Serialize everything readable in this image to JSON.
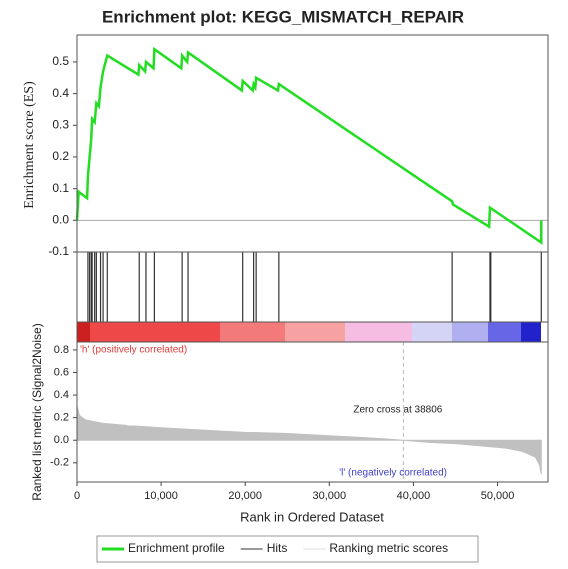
{
  "chart_data": [
    {
      "type": "line",
      "title": "Enrichment plot: KEGG_MISMATCH_REPAIR",
      "ylabel": "Enrichment score (ES)",
      "x": [
        0,
        200,
        1200,
        1300,
        1500,
        1700,
        1800,
        2100,
        2300,
        2600,
        2800,
        3100,
        3600,
        7300,
        7400,
        8100,
        8200,
        9100,
        9200,
        12400,
        12500,
        13100,
        13200,
        19600,
        19700,
        20900,
        21000,
        21200,
        21300,
        23900,
        24000,
        44600,
        44700,
        49000,
        49100,
        55200,
        55200
      ],
      "series": [
        {
          "name": "Enrichment profile",
          "color": "#22dd22",
          "values": [
            0.0,
            0.09,
            0.07,
            0.14,
            0.2,
            0.26,
            0.32,
            0.31,
            0.37,
            0.36,
            0.42,
            0.47,
            0.52,
            0.46,
            0.49,
            0.47,
            0.5,
            0.48,
            0.54,
            0.48,
            0.52,
            0.5,
            0.53,
            0.41,
            0.44,
            0.41,
            0.43,
            0.42,
            0.45,
            0.41,
            0.43,
            0.06,
            0.05,
            -0.02,
            0.04,
            -0.07,
            0.0
          ]
        }
      ],
      "xlim": [
        0,
        56000
      ],
      "ylim": [
        -0.1,
        0.585
      ],
      "yticks": [
        {
          "value": -0.1,
          "label": "-0.1"
        },
        {
          "value": 0,
          "label": "0.0"
        },
        0.1,
        0.2,
        0.3,
        0.4,
        0.5
      ]
    },
    {
      "type": "rug",
      "xlim": [
        0,
        56000
      ],
      "series": [
        {
          "name": "Hits",
          "color": "#333333",
          "x": [
            1300,
            1500,
            1700,
            1800,
            2100,
            2300,
            2800,
            3100,
            3600,
            7400,
            8200,
            9200,
            12500,
            13200,
            19700,
            21000,
            21300,
            24000,
            44600,
            49100,
            49200,
            55200
          ]
        }
      ]
    },
    {
      "type": "area",
      "xlabel": "Rank in Ordered Dataset",
      "ylabel": "Ranked list metric (Signal2Noise)",
      "x": [
        0,
        300,
        1000,
        3000,
        6000,
        10000,
        15000,
        20000,
        25000,
        30000,
        35000,
        38806,
        42000,
        45000,
        48000,
        51000,
        53000,
        54500,
        55000,
        55200
      ],
      "series": [
        {
          "name": "Ranking metric scores",
          "color": "#c0c0c0",
          "values": [
            0.3,
            0.22,
            0.18,
            0.15,
            0.13,
            0.11,
            0.09,
            0.07,
            0.06,
            0.04,
            0.02,
            0.0,
            -0.02,
            -0.03,
            -0.05,
            -0.07,
            -0.1,
            -0.15,
            -0.22,
            -0.3
          ]
        }
      ],
      "xlim": [
        0,
        56000
      ],
      "xticks": [
        0,
        {
          "value": 10000,
          "label": "10,000"
        },
        {
          "value": 20000,
          "label": "20,000"
        },
        {
          "value": 30000,
          "label": "30,000"
        },
        {
          "value": 40000,
          "label": "40,000"
        },
        {
          "value": 50000,
          "label": "50,000"
        }
      ],
      "ylim": [
        -0.37,
        0.87
      ],
      "yticks": [
        -0.2,
        {
          "value": 0,
          "label": "0.0"
        },
        0.2,
        0.4,
        0.6,
        0.8
      ],
      "annotations": [
        {
          "text": "Zero cross at 38806",
          "x": 38806
        }
      ],
      "pos_label": {
        "text": "'h' (positively correlated)",
        "color": "#e03a3a"
      },
      "neg_label": {
        "text": "'l' (negatively correlated)",
        "color": "#4040cc"
      }
    }
  ]
}
